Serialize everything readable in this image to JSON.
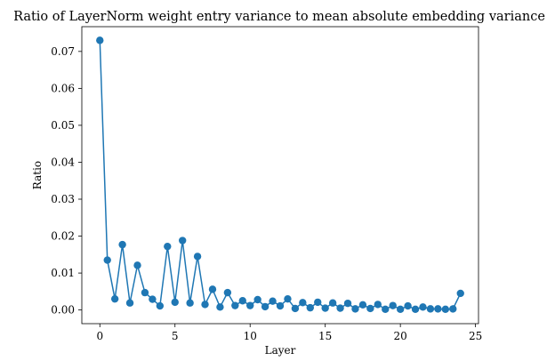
{
  "chart_data": {
    "type": "line",
    "title": "Ratio of LayerNorm weight entry variance to mean absolute embedding variance",
    "xlabel": "Layer",
    "ylabel": "Ratio",
    "xlim": [
      -1.2,
      25.2
    ],
    "ylim": [
      -0.0037,
      0.0767
    ],
    "xticks": [
      0,
      5,
      10,
      15,
      20,
      25
    ],
    "xtick_labels": [
      "0",
      "5",
      "10",
      "15",
      "20",
      "25"
    ],
    "yticks": [
      0.0,
      0.01,
      0.02,
      0.03,
      0.04,
      0.05,
      0.06,
      0.07
    ],
    "ytick_labels": [
      "0.00",
      "0.01",
      "0.02",
      "0.03",
      "0.04",
      "0.05",
      "0.06",
      "0.07"
    ],
    "grid": false,
    "series": [
      {
        "color": "#1f77b4",
        "marker": "circle",
        "x": [
          0,
          0.5,
          1,
          1.5,
          2,
          2.5,
          3,
          3.5,
          4,
          4.5,
          5,
          5.5,
          6,
          6.5,
          7,
          7.5,
          8,
          8.5,
          9,
          9.5,
          10,
          10.5,
          11,
          11.5,
          12,
          12.5,
          13,
          13.5,
          14,
          14.5,
          15,
          15.5,
          16,
          16.5,
          17,
          17.5,
          18,
          18.5,
          19,
          19.5,
          20,
          20.5,
          21,
          21.5,
          22,
          22.5,
          23,
          23.5,
          24
        ],
        "y": [
          0.073,
          0.0135,
          0.003,
          0.0177,
          0.0019,
          0.0121,
          0.0047,
          0.0029,
          0.0011,
          0.0172,
          0.0021,
          0.0188,
          0.0019,
          0.0145,
          0.0015,
          0.0056,
          0.0008,
          0.0047,
          0.0012,
          0.0025,
          0.0012,
          0.0028,
          0.0009,
          0.0024,
          0.0011,
          0.003,
          0.0004,
          0.002,
          0.0006,
          0.0021,
          0.0005,
          0.0019,
          0.0005,
          0.0018,
          0.0003,
          0.0014,
          0.0004,
          0.0015,
          0.0002,
          0.0012,
          0.0002,
          0.0011,
          0.0002,
          0.0008,
          0.0003,
          0.0003,
          0.0002,
          0.0003,
          0.0045
        ]
      }
    ]
  }
}
